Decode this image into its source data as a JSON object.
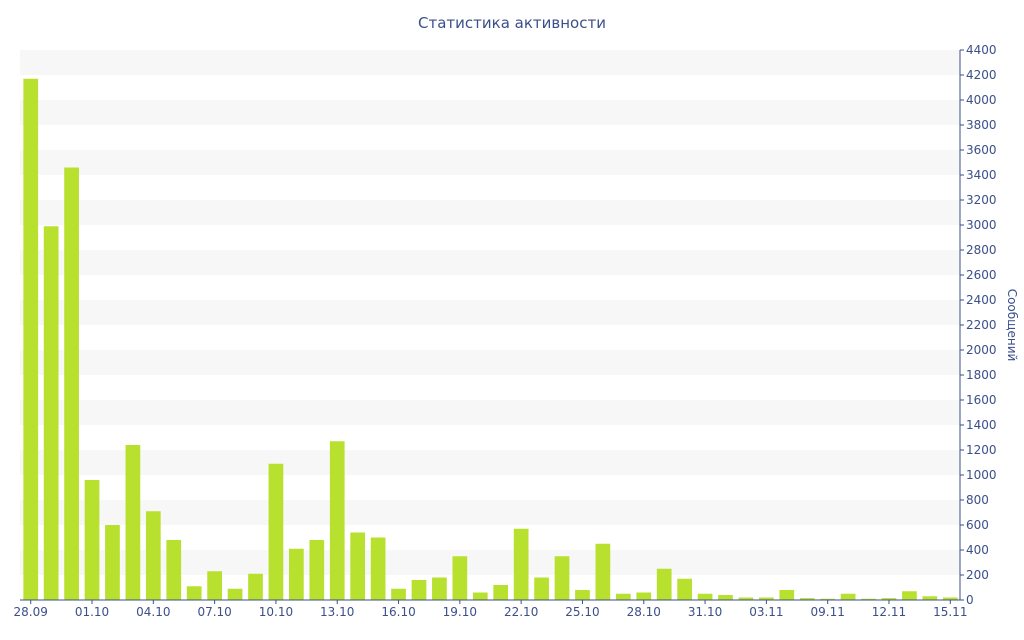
{
  "chart_data": {
    "type": "bar",
    "title": "Статистика активности",
    "ylabel": "Сообщений",
    "xlabel": "",
    "ylim": [
      0,
      4400
    ],
    "y_ticks": [
      0,
      200,
      400,
      600,
      800,
      1000,
      1200,
      1400,
      1600,
      1800,
      2000,
      2200,
      2400,
      2600,
      2800,
      3000,
      3200,
      3400,
      3600,
      3800,
      4000,
      4200,
      4400
    ],
    "y_axis_side": "right",
    "grid": "horizontal alternating bands",
    "x_ticks": [
      "28.09",
      "01.10",
      "04.10",
      "07.10",
      "10.10",
      "13.10",
      "16.10",
      "19.10",
      "22.10",
      "25.10",
      "28.10",
      "31.10",
      "03.11",
      "09.11",
      "12.11",
      "15.11"
    ],
    "x_tick_bar_index": [
      0,
      3,
      6,
      9,
      12,
      15,
      18,
      21,
      24,
      27,
      30,
      33,
      36,
      39,
      42,
      45
    ],
    "values": [
      4170,
      2990,
      3460,
      960,
      600,
      1240,
      710,
      480,
      110,
      230,
      90,
      210,
      1090,
      410,
      480,
      1270,
      540,
      500,
      90,
      160,
      180,
      350,
      60,
      120,
      570,
      180,
      350,
      80,
      450,
      50,
      60,
      250,
      170,
      50,
      40,
      20,
      20,
      80,
      15,
      10,
      50,
      10,
      15,
      70,
      30,
      20
    ],
    "colors": {
      "bar": "#b8e02e",
      "axis": "#3b4f8a",
      "band": "#f7f7f7"
    }
  }
}
